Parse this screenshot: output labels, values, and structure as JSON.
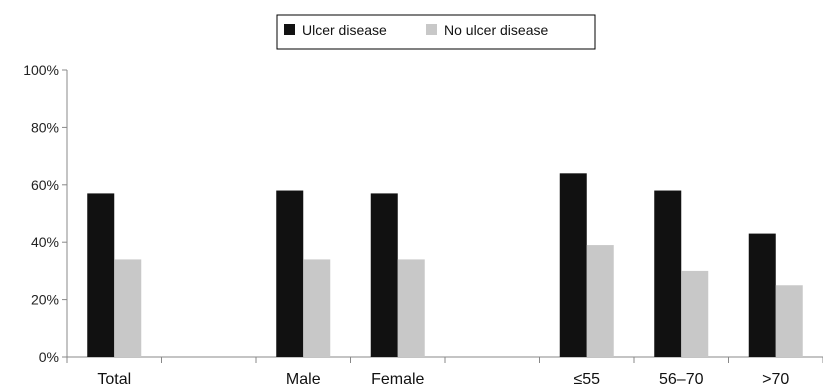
{
  "chart_data": {
    "type": "bar",
    "title": "",
    "xlabel": "",
    "ylabel": "",
    "ylim": [
      0,
      100
    ],
    "yticks": [
      "0%",
      "20%",
      "40%",
      "60%",
      "80%",
      "100%"
    ],
    "categories": [
      "Total",
      "",
      "Male",
      "Female",
      "",
      "≤55",
      "56–70",
      ">70"
    ],
    "series": [
      {
        "name": "Ulcer disease",
        "color": "#111111",
        "values": [
          57,
          null,
          58,
          57,
          null,
          64,
          58,
          43
        ]
      },
      {
        "name": "No ulcer disease",
        "color": "#c8c8c8",
        "values": [
          34,
          null,
          34,
          34,
          null,
          39,
          30,
          25
        ]
      }
    ],
    "legend": {
      "placement": "top-center"
    },
    "grid": false
  }
}
